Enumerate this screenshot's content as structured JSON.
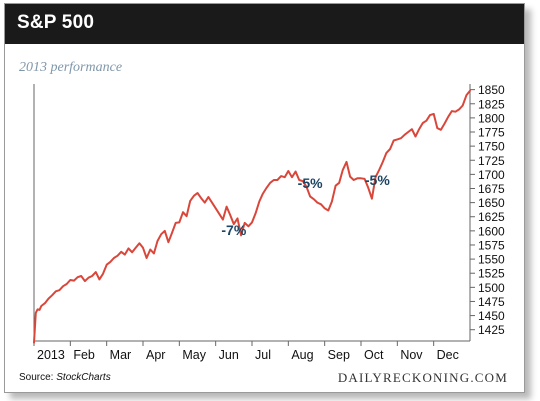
{
  "header": {
    "title": "S&P 500"
  },
  "subtitle": "2013 performance",
  "footer": {
    "source_label": "Source:",
    "source_name": "StockCharts",
    "brand": "DAILYRECKONING.COM"
  },
  "colors": {
    "line": "#d9473b",
    "annotation": "#1b4563",
    "header_bg": "#1a1a1a",
    "subtitle": "#7f97aa"
  },
  "chart_data": {
    "type": "line",
    "title": "S&P 500",
    "subtitle": "2013 performance",
    "xlabel": "",
    "ylabel": "",
    "grid": false,
    "legend": "none",
    "x_tick_labels": [
      "2013",
      "Feb",
      "Mar",
      "Apr",
      "May",
      "Jun",
      "Jul",
      "Aug",
      "Sep",
      "Oct",
      "Nov",
      "Dec"
    ],
    "y_ticks": [
      1425,
      1450,
      1475,
      1500,
      1525,
      1550,
      1575,
      1600,
      1625,
      1650,
      1675,
      1700,
      1725,
      1750,
      1775,
      1800,
      1825,
      1850
    ],
    "ylim": [
      1405,
      1860
    ],
    "xlim": [
      0,
      12
    ],
    "series": [
      {
        "x": [
          0.0,
          0.05,
          0.1,
          0.15,
          0.2,
          0.3,
          0.4,
          0.5,
          0.6,
          0.7,
          0.8,
          0.9,
          1.0,
          1.1,
          1.2,
          1.3,
          1.4,
          1.5,
          1.6,
          1.7,
          1.8,
          1.9,
          2.0,
          2.1,
          2.2,
          2.3,
          2.4,
          2.5,
          2.6,
          2.7,
          2.8,
          2.9,
          3.0,
          3.1,
          3.2,
          3.3,
          3.4,
          3.5,
          3.6,
          3.7,
          3.8,
          3.9,
          4.0,
          4.1,
          4.2,
          4.3,
          4.4,
          4.5,
          4.6,
          4.7,
          4.8,
          4.9,
          5.0,
          5.1,
          5.2,
          5.3,
          5.4,
          5.5,
          5.6,
          5.7,
          5.8,
          5.9,
          6.0,
          6.1,
          6.2,
          6.3,
          6.4,
          6.5,
          6.6,
          6.7,
          6.8,
          6.9,
          7.0,
          7.1,
          7.2,
          7.3,
          7.4,
          7.5,
          7.6,
          7.7,
          7.8,
          7.9,
          8.0,
          8.1,
          8.2,
          8.3,
          8.4,
          8.5,
          8.6,
          8.7,
          8.8,
          8.9,
          9.0,
          9.1,
          9.2,
          9.3,
          9.4,
          9.5,
          9.6,
          9.7,
          9.8,
          9.9,
          10.0,
          10.1,
          10.2,
          10.3,
          10.4,
          10.5,
          10.6,
          10.7,
          10.8,
          10.9,
          11.0,
          11.1,
          11.2,
          11.3,
          11.4,
          11.5,
          11.6,
          11.7,
          11.8,
          11.9,
          12.0
        ],
        "values": [
          1402,
          1455,
          1461,
          1460,
          1467,
          1472,
          1480,
          1486,
          1493,
          1495,
          1502,
          1506,
          1513,
          1512,
          1518,
          1520,
          1511,
          1517,
          1520,
          1527,
          1514,
          1524,
          1540,
          1545,
          1552,
          1556,
          1563,
          1558,
          1569,
          1562,
          1570,
          1578,
          1570,
          1552,
          1567,
          1560,
          1582,
          1594,
          1600,
          1580,
          1597,
          1614,
          1615,
          1633,
          1626,
          1653,
          1662,
          1667,
          1658,
          1650,
          1660,
          1650,
          1640,
          1630,
          1620,
          1643,
          1628,
          1612,
          1622,
          1592,
          1614,
          1608,
          1615,
          1631,
          1652,
          1666,
          1676,
          1685,
          1690,
          1690,
          1697,
          1695,
          1706,
          1695,
          1705,
          1690,
          1688,
          1678,
          1661,
          1656,
          1650,
          1647,
          1640,
          1636,
          1652,
          1680,
          1685,
          1708,
          1722,
          1696,
          1690,
          1693,
          1693,
          1692,
          1676,
          1657,
          1695,
          1708,
          1722,
          1738,
          1745,
          1760,
          1762,
          1764,
          1770,
          1775,
          1780,
          1767,
          1780,
          1791,
          1795,
          1805,
          1807,
          1782,
          1779,
          1790,
          1802,
          1812,
          1811,
          1815,
          1822,
          1840,
          1848
        ]
      }
    ],
    "annotations": [
      {
        "text": "-7%",
        "x": 5.5,
        "y": 1593
      },
      {
        "text": "-5%",
        "x": 7.6,
        "y": 1676
      },
      {
        "text": "-5%",
        "x": 9.45,
        "y": 1681
      }
    ]
  }
}
